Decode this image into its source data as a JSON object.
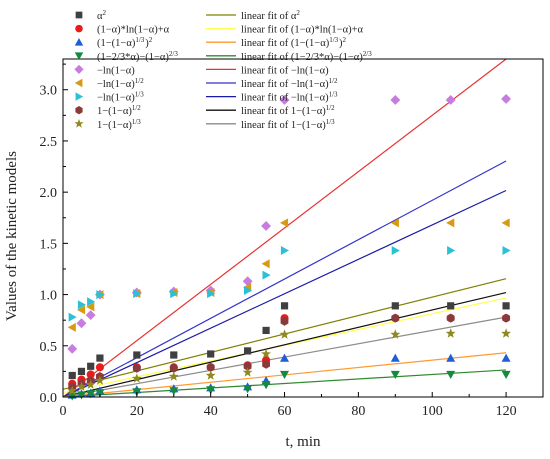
{
  "chart_data": {
    "type": "scatter",
    "xlabel": "t, min",
    "ylabel": "Values of the kinetic models",
    "xlim": [
      0,
      130
    ],
    "ylim": [
      0,
      3.3
    ],
    "xticks": [
      0,
      20,
      40,
      60,
      80,
      100,
      120
    ],
    "yticks": [
      0.0,
      0.5,
      1.0,
      1.5,
      2.0,
      2.5,
      3.0
    ],
    "grid": false,
    "legend_position": "top-left",
    "x": [
      2.5,
      5,
      7.5,
      10,
      20,
      30,
      40,
      50,
      55,
      60,
      90,
      105,
      120
    ],
    "series": [
      {
        "name": "α²",
        "marker": "square",
        "color": "#404040",
        "values": [
          0.21,
          0.25,
          0.3,
          0.38,
          0.41,
          0.41,
          0.42,
          0.45,
          0.65,
          0.89,
          0.89,
          0.89,
          0.89
        ],
        "fit_name": "linear fit of α²",
        "fit_color": "#808000",
        "fit": [
          0.075,
          0.009
        ]
      },
      {
        "name": "(1−α)*ln(1−α)+α",
        "marker": "circle",
        "color": "#e81c1c",
        "values": [
          0.13,
          0.17,
          0.22,
          0.29,
          0.29,
          0.29,
          0.29,
          0.31,
          0.36,
          0.77,
          0.77,
          0.77,
          0.77
        ],
        "fit_name": "linear fit of (1−α)*ln(1−α)+α",
        "fit_color": "#ffff4d",
        "fit": [
          0.043,
          0.0077
        ]
      },
      {
        "name": "(1−(1−α)^{1/3})²",
        "marker": "triangle-up",
        "color": "#1f5fd6",
        "values": [
          0.02,
          0.03,
          0.04,
          0.06,
          0.07,
          0.08,
          0.09,
          0.1,
          0.16,
          0.38,
          0.38,
          0.38,
          0.38
        ],
        "fit_name": "linear fit of (1−(1−α)^{1/3})²",
        "fit_color": "#ff9933",
        "fit": [
          0.0,
          0.0036
        ]
      },
      {
        "name": "(1−2/3*α)−(1−α)^{2/3}",
        "marker": "triangle-down",
        "color": "#138a3e",
        "values": [
          0.01,
          0.02,
          0.03,
          0.04,
          0.05,
          0.06,
          0.07,
          0.08,
          0.12,
          0.22,
          0.22,
          0.22,
          0.22
        ],
        "fit_name": "linear fit of (1−2/3*α)−(1−α)^{2/3}",
        "fit_color": "#2e8b2e",
        "fit": [
          0.0,
          0.0022
        ]
      },
      {
        "name": "−ln(1−α)",
        "marker": "diamond",
        "color": "#c77ddf",
        "values": [
          0.47,
          0.72,
          0.8,
          1.0,
          1.02,
          1.03,
          1.04,
          1.13,
          1.67,
          2.9,
          2.9,
          2.9,
          2.91
        ],
        "fit_name": "linear fit of −ln(1−α)",
        "fit_color": "#e83232",
        "fit": [
          0.0,
          0.0275
        ]
      },
      {
        "name": "−ln(1−α)^{1/2}",
        "marker": "triangle-left",
        "color": "#d79a12",
        "values": [
          0.68,
          0.85,
          0.88,
          1.0,
          1.01,
          1.02,
          1.02,
          1.07,
          1.3,
          1.7,
          1.7,
          1.7,
          1.7
        ],
        "fit_name": "linear fit of −ln(1−α)^{1/2}",
        "fit_color": "#3333cc",
        "fit": [
          0.0,
          0.0192
        ]
      },
      {
        "name": "−ln(1−α)^{1/3}",
        "marker": "triangle-right",
        "color": "#2bc0d6",
        "values": [
          0.78,
          0.9,
          0.93,
          1.0,
          1.01,
          1.01,
          1.01,
          1.04,
          1.19,
          1.43,
          1.43,
          1.43,
          1.43
        ],
        "fit_name": "linear fit of −ln(1−α)^{1/3}",
        "fit_color": "#1a1aa8",
        "fit": [
          0.0,
          0.0168
        ]
      },
      {
        "name": "1−(1−α)^{1/2}",
        "marker": "hexagon",
        "color": "#8a3a3a",
        "values": [
          0.1,
          0.13,
          0.16,
          0.2,
          0.28,
          0.28,
          0.29,
          0.3,
          0.32,
          0.74,
          0.77,
          0.77,
          0.77
        ],
        "fit_name": "linear fit of 1−(1−α)^{1/2}",
        "fit_color": "#111111",
        "fit": [
          0.0,
          0.0085
        ]
      },
      {
        "name": "1−(1−α)^{1/3}",
        "marker": "star",
        "color": "#8f8a20",
        "values": [
          0.06,
          0.1,
          0.12,
          0.16,
          0.18,
          0.2,
          0.21,
          0.24,
          0.42,
          0.61,
          0.61,
          0.62,
          0.62
        ],
        "fit_name": "linear fit of 1−(1−α)^{1/3}",
        "fit_color": "#8c8c8c",
        "fit": [
          0.0,
          0.0065
        ]
      }
    ]
  }
}
